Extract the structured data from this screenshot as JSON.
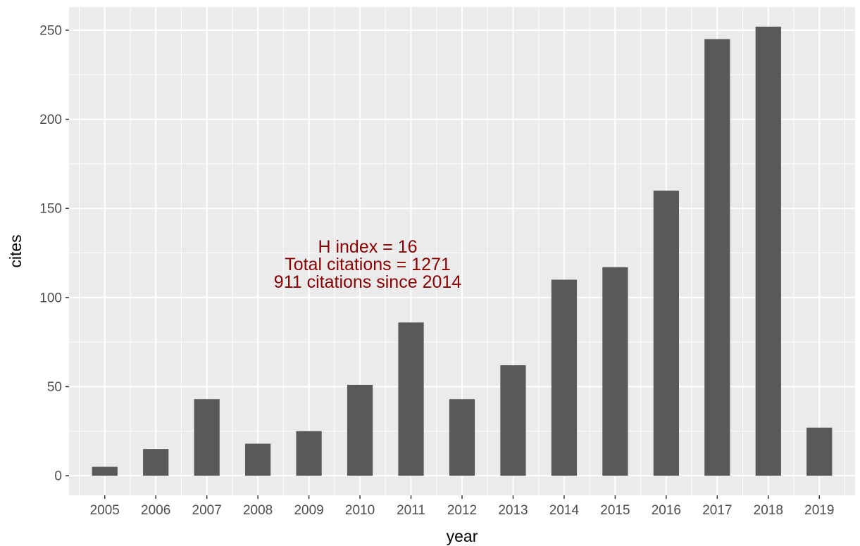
{
  "chart_data": {
    "type": "bar",
    "categories": [
      "2005",
      "2006",
      "2007",
      "2008",
      "2009",
      "2010",
      "2011",
      "2012",
      "2013",
      "2014",
      "2015",
      "2016",
      "2017",
      "2018",
      "2019"
    ],
    "values": [
      5,
      15,
      43,
      18,
      25,
      51,
      86,
      43,
      62,
      110,
      117,
      160,
      245,
      252,
      27
    ],
    "xlabel": "year",
    "ylabel": "cites",
    "ylim": [
      -11,
      263
    ],
    "yticks": [
      0,
      50,
      100,
      150,
      200,
      250
    ],
    "grid": true,
    "annotation": [
      "H index = 16",
      "Total citations = 1271",
      "911 citations since 2014"
    ],
    "colors": {
      "panel": "#ebebeb",
      "grid": "#ffffff",
      "bar": "#595959",
      "annotation": "#8b0000"
    }
  }
}
